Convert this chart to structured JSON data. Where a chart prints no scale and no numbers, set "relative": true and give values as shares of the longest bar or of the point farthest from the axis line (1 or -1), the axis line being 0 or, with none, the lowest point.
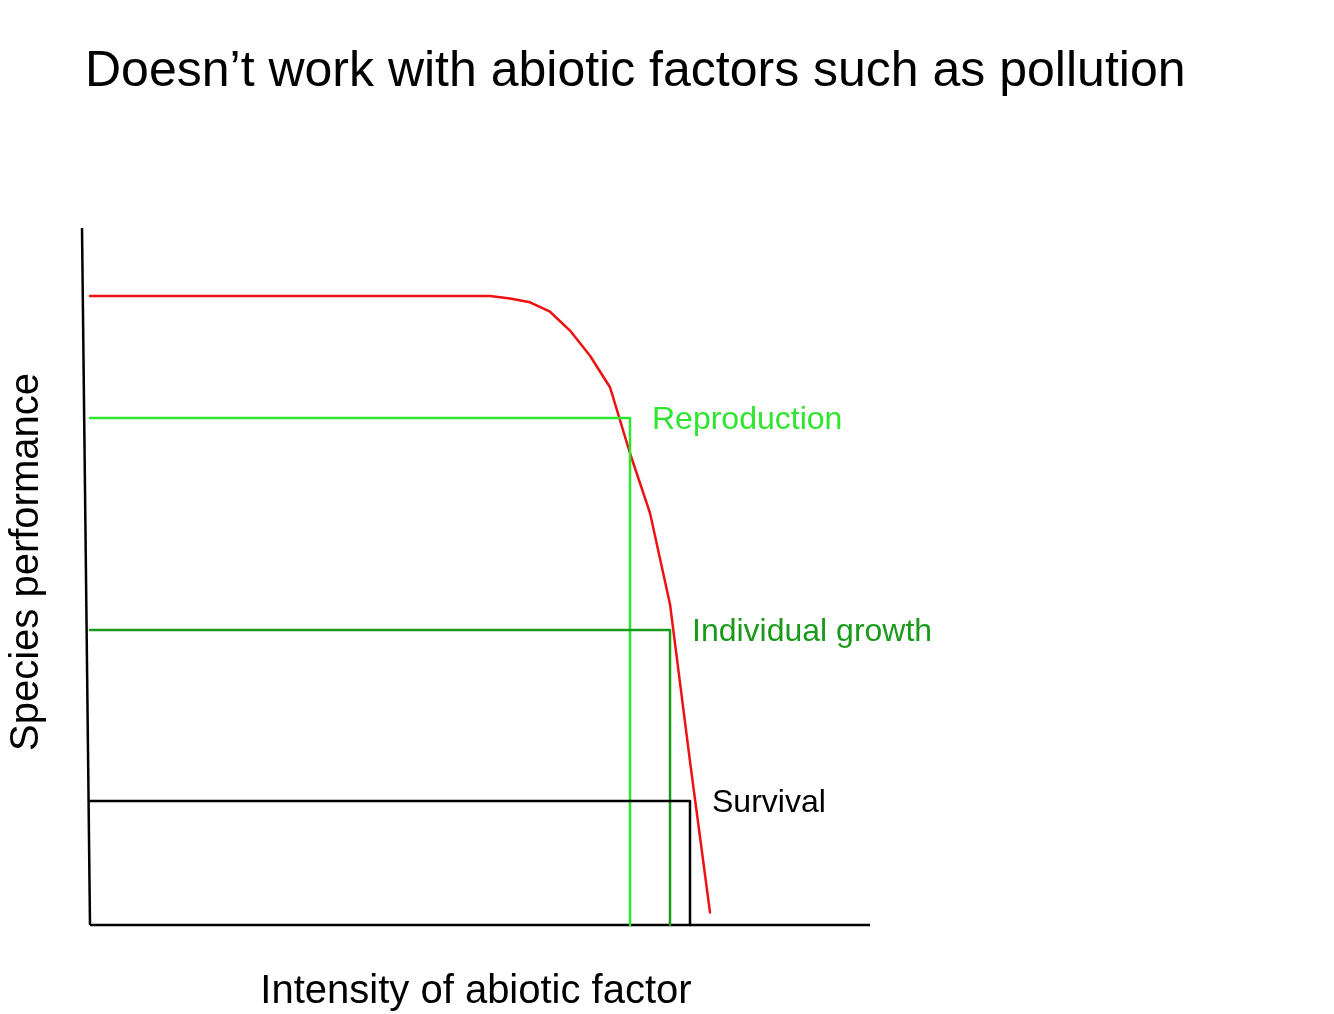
{
  "chart_data": {
    "type": "line",
    "title": "Doesn’t work with abiotic factors such as pollution",
    "xlabel": "Intensity of abiotic factor",
    "ylabel": "Species performance",
    "relative": true,
    "categories": [
      null,
      null,
      null,
      null,
      null,
      null,
      null,
      null,
      null,
      null,
      null,
      null,
      null,
      null,
      null,
      null,
      null,
      null,
      null,
      null,
      null,
      null,
      null,
      null,
      null,
      null,
      null,
      null,
      null,
      null,
      null,
      null,
      null,
      null,
      null,
      null,
      null,
      null,
      null,
      null
    ],
    "series": [
      {
        "color": "#ee1111",
        "values": [
          1,
          1,
          1,
          1,
          1,
          1,
          1,
          1,
          1,
          1,
          1,
          1,
          1,
          1,
          1,
          1,
          1,
          1,
          1,
          1,
          1,
          0.996,
          0.99,
          0.975,
          0.945,
          0.905,
          0.855,
          0.75,
          0.655,
          0.51,
          0.26,
          0.02,
          null,
          null,
          null,
          null,
          null,
          null,
          null,
          null
        ]
      },
      {
        "name": "Reproduction",
        "type": "step",
        "color": "#2ee62e",
        "values": [
          0.806,
          0.806,
          0.806,
          0.806,
          0.806,
          0.806,
          0.806,
          0.806,
          0.806,
          0.806,
          0.806,
          0.806,
          0.806,
          0.806,
          0.806,
          0.806,
          0.806,
          0.806,
          0.806,
          0.806,
          0.806,
          0.806,
          0.806,
          0.806,
          0.806,
          0.806,
          0.806,
          0,
          null,
          null,
          null,
          null,
          null,
          null,
          null,
          null,
          null,
          null,
          null,
          null
        ]
      },
      {
        "name": "Individual growth",
        "type": "step",
        "color": "#1a9a1a",
        "values": [
          0.469,
          0.469,
          0.469,
          0.469,
          0.469,
          0.469,
          0.469,
          0.469,
          0.469,
          0.469,
          0.469,
          0.469,
          0.469,
          0.469,
          0.469,
          0.469,
          0.469,
          0.469,
          0.469,
          0.469,
          0.469,
          0.469,
          0.469,
          0.469,
          0.469,
          0.469,
          0.469,
          0.469,
          0.469,
          0,
          null,
          null,
          null,
          null,
          null,
          null,
          null,
          null,
          null,
          null
        ]
      },
      {
        "name": "Survival",
        "type": "step",
        "color": "#000000",
        "values": [
          0.197,
          0.197,
          0.197,
          0.197,
          0.197,
          0.197,
          0.197,
          0.197,
          0.197,
          0.197,
          0.197,
          0.197,
          0.197,
          0.197,
          0.197,
          0.197,
          0.197,
          0.197,
          0.197,
          0.197,
          0.197,
          0.197,
          0.197,
          0.197,
          0.197,
          0.197,
          0.197,
          0.197,
          0.197,
          0.197,
          0,
          null,
          null,
          null,
          null,
          null,
          null,
          null,
          null,
          null
        ]
      }
    ]
  }
}
